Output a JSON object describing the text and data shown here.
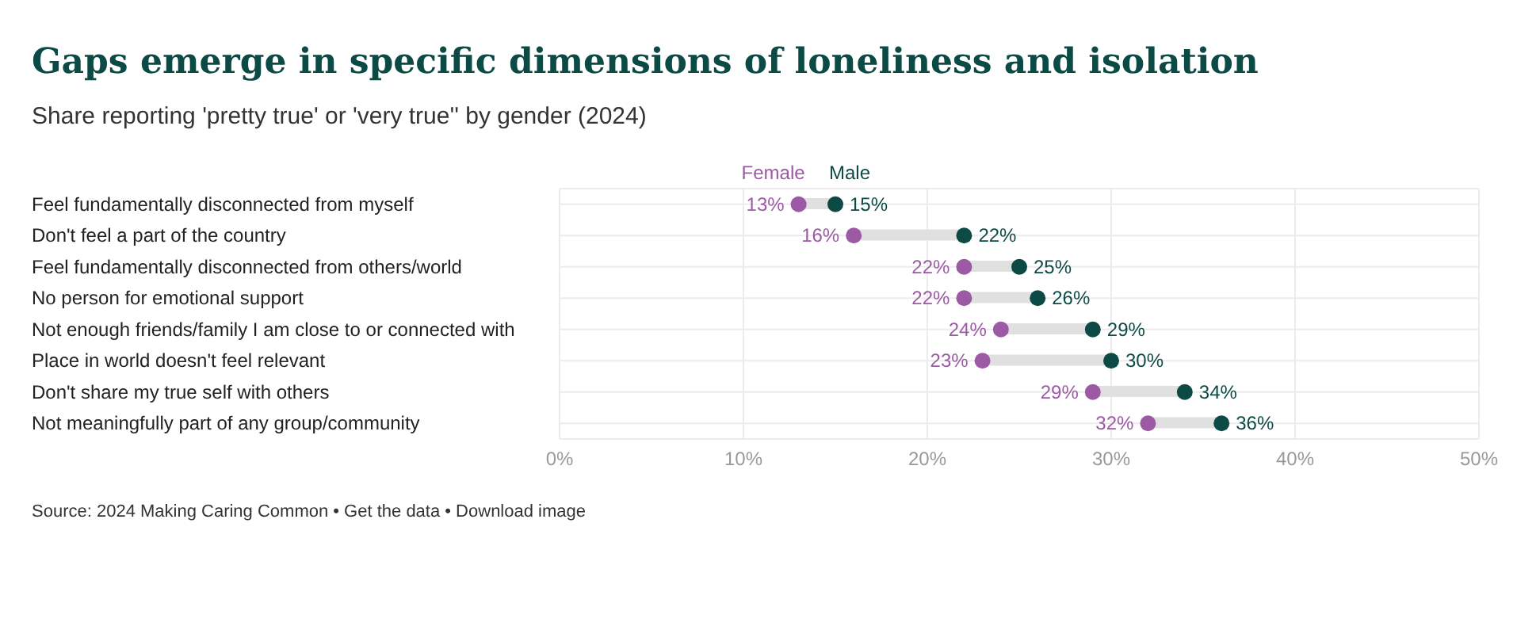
{
  "chart_data": {
    "type": "scatter",
    "orientation": "horizontal",
    "title": "Gaps emerge in specific dimensions of loneliness and isolation",
    "subtitle": "Share reporting 'pretty true' or 'very true'' by gender (2024)",
    "annotations": [
      "Source: 2024 Making Caring Common • Get the data • Download image"
    ],
    "categories": [
      "Feel fundamentally disconnected from myself",
      "Don't feel a part of the country",
      "Feel fundamentally disconnected from others/world",
      "No person for emotional support",
      "Not enough friends/family I am close to or connected with",
      "Place in world doesn't feel relevant",
      "Don't share my true self with others",
      "Not meaningfully part of any group/community"
    ],
    "xlim": [
      0,
      50
    ],
    "xticks": [
      {
        "value": 0,
        "label": "0%"
      },
      {
        "value": 10,
        "label": "10%"
      },
      {
        "value": 20,
        "label": "20%"
      },
      {
        "value": 30,
        "label": "30%"
      },
      {
        "value": 40,
        "label": "40%"
      },
      {
        "value": 50,
        "label": "50%"
      }
    ],
    "grid": true,
    "legend": false,
    "marker": "circle",
    "series": [
      {
        "type": "bar",
        "color": "#e0e0e0",
        "base": [
          13,
          16,
          22,
          22,
          24,
          23,
          29,
          32
        ],
        "values": [
          2,
          6,
          3,
          4,
          5,
          7,
          5,
          4
        ]
      },
      {
        "name": "Female",
        "color": "#9c5aa5",
        "values": [
          13,
          16,
          22,
          22,
          24,
          23,
          29,
          32
        ],
        "value_labels": [
          "13%",
          "16%",
          "22%",
          "22%",
          "24%",
          "23%",
          "29%",
          "32%"
        ]
      },
      {
        "name": "Male",
        "color": "#0d4a45",
        "values": [
          15,
          22,
          25,
          26,
          29,
          30,
          34,
          36
        ],
        "value_labels": [
          "15%",
          "22%",
          "25%",
          "26%",
          "29%",
          "30%",
          "34%",
          "36%"
        ]
      }
    ]
  }
}
